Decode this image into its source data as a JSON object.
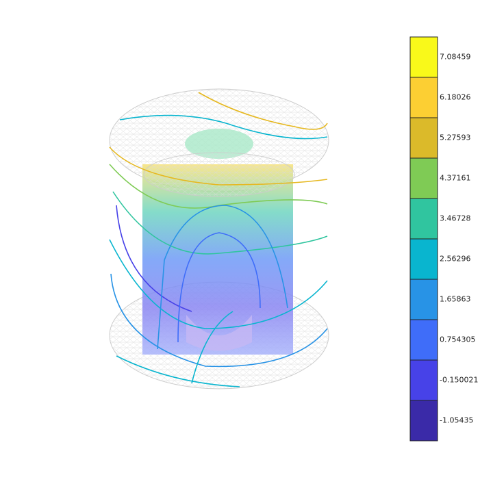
{
  "chart_data": {
    "type": "colorbar",
    "levels": [
      -1.05435,
      -0.150021,
      0.754305,
      1.65863,
      2.56296,
      3.46728,
      4.37161,
      5.27593,
      6.18026,
      7.08459
    ],
    "colors": [
      "#3a2aa8",
      "#4742e8",
      "#3f6df9",
      "#2893e6",
      "#09b5cf",
      "#30c59f",
      "#7fcb55",
      "#dbba2a",
      "#fccf33",
      "#f9f91a"
    ]
  }
}
